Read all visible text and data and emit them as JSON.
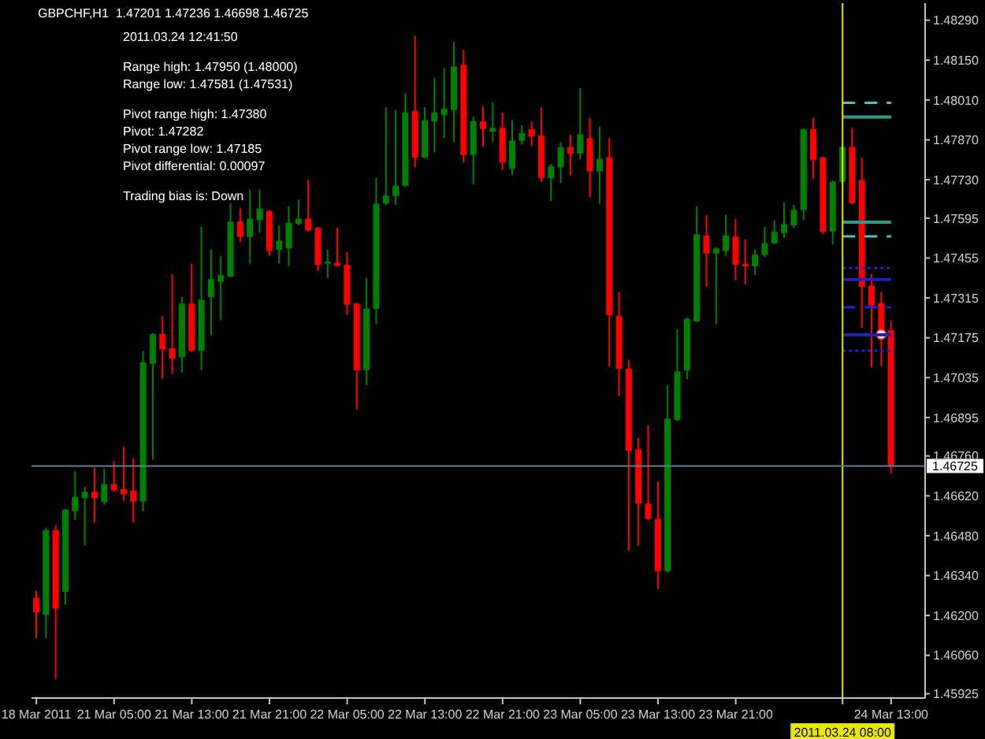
{
  "chart_data": {
    "type": "candlestick",
    "title": "GBPCHF,H1  1.47201 1.47236 1.46698 1.46725",
    "annotations": [
      "2011.03.24 12:41:50",
      "Range high: 1.47950 (1.48000)",
      "Range low: 1.47581 (1.47531)",
      "Pivot range high: 1.47380",
      "Pivot: 1.47282",
      "Pivot range low: 1.47185",
      "Pivot differential: 0.00097",
      "Trading bias is: Down"
    ],
    "categories": [
      "18 Mar 2011",
      null,
      null,
      null,
      null,
      null,
      null,
      null,
      "21 Mar 05:00",
      null,
      null,
      null,
      null,
      null,
      null,
      null,
      "21 Mar 13:00",
      null,
      null,
      null,
      null,
      null,
      null,
      null,
      "21 Mar 21:00",
      null,
      null,
      null,
      null,
      null,
      null,
      null,
      "22 Mar 05:00",
      null,
      null,
      null,
      null,
      null,
      null,
      null,
      "22 Mar 13:00",
      null,
      null,
      null,
      null,
      null,
      null,
      null,
      "22 Mar 21:00",
      null,
      null,
      null,
      null,
      null,
      null,
      null,
      "23 Mar 05:00",
      null,
      null,
      null,
      null,
      null,
      null,
      null,
      "23 Mar 13:00",
      null,
      null,
      null,
      null,
      null,
      null,
      null,
      "23 Mar 21:00",
      null,
      null,
      null,
      null,
      null,
      null,
      null,
      null,
      null,
      null,
      "2011.03.24 08:00",
      null,
      null,
      null,
      null,
      "24 Mar 13:00"
    ],
    "ohlc": [
      [
        1.46261,
        1.46287,
        1.46121,
        1.46211
      ],
      [
        1.46202,
        1.46508,
        1.46121,
        1.46499
      ],
      [
        1.46499,
        1.46517,
        1.45977,
        1.46224
      ],
      [
        1.46283,
        1.46575,
        1.46238,
        1.46571
      ],
      [
        1.46566,
        1.46706,
        1.46535,
        1.46616
      ],
      [
        1.46612,
        1.46652,
        1.46445,
        1.46634
      ],
      [
        1.46634,
        1.46719,
        1.46526,
        1.46612
      ],
      [
        1.46598,
        1.46715,
        1.46589,
        1.46661
      ],
      [
        1.46661,
        1.46742,
        1.46634,
        1.46639
      ],
      [
        1.46643,
        1.46792,
        1.46603,
        1.46625
      ],
      [
        1.46638,
        1.46751,
        1.46526,
        1.466
      ],
      [
        1.466,
        1.47129,
        1.46566,
        1.47089
      ],
      [
        1.47084,
        1.47192,
        1.46747,
        1.47188
      ],
      [
        1.47188,
        1.47251,
        1.4703,
        1.47134
      ],
      [
        1.47138,
        1.47399,
        1.47048,
        1.47102
      ],
      [
        1.47107,
        1.47318,
        1.47053,
        1.47295
      ],
      [
        1.47295,
        1.47435,
        1.47125,
        1.47129
      ],
      [
        1.47129,
        1.47565,
        1.47061,
        1.47309
      ],
      [
        1.47318,
        1.47485,
        1.47183,
        1.47381
      ],
      [
        1.47372,
        1.47462,
        1.47237,
        1.47395
      ],
      [
        1.4739,
        1.47647,
        1.47386,
        1.47583
      ],
      [
        1.47583,
        1.47629,
        1.47511,
        1.47529
      ],
      [
        1.47529,
        1.47696,
        1.47435,
        1.47593
      ],
      [
        1.47588,
        1.47696,
        1.47543,
        1.47629
      ],
      [
        1.4762,
        1.47624,
        1.47462,
        1.4748
      ],
      [
        1.47484,
        1.4757,
        1.47435,
        1.47516
      ],
      [
        1.47489,
        1.47637,
        1.47426,
        1.47579
      ],
      [
        1.47575,
        1.4766,
        1.4757,
        1.47593
      ],
      [
        1.47593,
        1.4773,
        1.47548,
        1.47552
      ],
      [
        1.47561,
        1.47565,
        1.47408,
        1.47431
      ],
      [
        1.47435,
        1.47485,
        1.47385,
        1.47442
      ],
      [
        1.47439,
        1.47561,
        1.47424,
        1.47428
      ],
      [
        1.47431,
        1.47476,
        1.47255,
        1.47291
      ],
      [
        1.47295,
        1.47298,
        1.46922,
        1.47061
      ],
      [
        1.47061,
        1.47385,
        1.47008,
        1.47277
      ],
      [
        1.47277,
        1.47736,
        1.47224,
        1.47646
      ],
      [
        1.47646,
        1.47984,
        1.47642,
        1.47674
      ],
      [
        1.47673,
        1.47975,
        1.47642,
        1.47709
      ],
      [
        1.47709,
        1.48034,
        1.47705,
        1.47966
      ],
      [
        1.47971,
        1.48236,
        1.47773,
        1.47808
      ],
      [
        1.47808,
        1.47984,
        1.47804,
        1.47939
      ],
      [
        1.47935,
        1.48088,
        1.47826,
        1.47966
      ],
      [
        1.47957,
        1.48123,
        1.47876,
        1.47979
      ],
      [
        1.47975,
        1.48214,
        1.47862,
        1.48128
      ],
      [
        1.48133,
        1.48186,
        1.4779,
        1.47817
      ],
      [
        1.47817,
        1.47952,
        1.47714,
        1.47935
      ],
      [
        1.47935,
        1.47988,
        1.47845,
        1.47908
      ],
      [
        1.47899,
        1.48002,
        1.47863,
        1.47912
      ],
      [
        1.47912,
        1.47966,
        1.47764,
        1.4779
      ],
      [
        1.47768,
        1.47939,
        1.47746,
        1.47867
      ],
      [
        1.47867,
        1.47921,
        1.47854,
        1.47894
      ],
      [
        1.47907,
        1.47934,
        1.47849,
        1.47881
      ],
      [
        1.47885,
        1.47984,
        1.47723,
        1.47736
      ],
      [
        1.47736,
        1.47786,
        1.47655,
        1.47777
      ],
      [
        1.47773,
        1.47862,
        1.47718,
        1.47844
      ],
      [
        1.47844,
        1.47889,
        1.47746,
        1.47822
      ],
      [
        1.47822,
        1.48052,
        1.478,
        1.47889
      ],
      [
        1.47876,
        1.47948,
        1.47669,
        1.47759
      ],
      [
        1.47759,
        1.47916,
        1.47646,
        1.47804
      ],
      [
        1.47809,
        1.47876,
        1.47075,
        1.47255
      ],
      [
        1.47251,
        1.47336,
        1.46971,
        1.47066
      ],
      [
        1.47066,
        1.47097,
        1.46427,
        1.46778
      ],
      [
        1.46783,
        1.46823,
        1.46445,
        1.46593
      ],
      [
        1.46593,
        1.46868,
        1.46535,
        1.46539
      ],
      [
        1.46539,
        1.4667,
        1.46292,
        1.46355
      ],
      [
        1.46355,
        1.47008,
        1.46351,
        1.46891
      ],
      [
        1.46886,
        1.47205,
        1.46882,
        1.47057
      ],
      [
        1.47061,
        1.47246,
        1.4703,
        1.47242
      ],
      [
        1.47233,
        1.47637,
        1.47229,
        1.47538
      ],
      [
        1.47534,
        1.47606,
        1.47354,
        1.47471
      ],
      [
        1.47471,
        1.47493,
        1.47223,
        1.47489
      ],
      [
        1.4748,
        1.47606,
        1.47462,
        1.47534
      ],
      [
        1.4753,
        1.47592,
        1.47377,
        1.47431
      ],
      [
        1.47435,
        1.47521,
        1.47363,
        1.47426
      ],
      [
        1.47426,
        1.47485,
        1.47395,
        1.47467
      ],
      [
        1.47466,
        1.47565,
        1.47457,
        1.47507
      ],
      [
        1.47507,
        1.47588,
        1.47503,
        1.47547
      ],
      [
        1.47543,
        1.47651,
        1.47525,
        1.47574
      ],
      [
        1.4757,
        1.47642,
        1.47561,
        1.47624
      ],
      [
        1.47624,
        1.4791,
        1.47588,
        1.47907
      ],
      [
        1.47907,
        1.47948,
        1.47732,
        1.47799
      ],
      [
        1.47808,
        1.47811,
        1.47538,
        1.47547
      ],
      [
        1.47548,
        1.47727,
        1.47502,
        1.47723
      ],
      [
        1.47723,
        1.47849,
        1.47719,
        1.47845
      ],
      [
        1.47845,
        1.47912,
        1.47644,
        1.47647
      ],
      [
        1.47728,
        1.47808,
        1.4721,
        1.47354
      ],
      [
        1.47358,
        1.47399,
        1.47071,
        1.47287
      ],
      [
        1.47296,
        1.47336,
        1.47075,
        1.47187
      ],
      [
        1.47201,
        1.47236,
        1.46698,
        1.46725
      ]
    ],
    "colors": [
      "#ff0000",
      "#008000",
      "#ff0000",
      "#008000",
      "#008000",
      "#008000",
      "#ff0000",
      "#008000",
      "#ff0000",
      "#ff0000",
      "#ff0000",
      "#008000",
      "#008000",
      "#ff0000",
      "#ff0000",
      "#008000",
      "#ff0000",
      "#008000",
      "#008000",
      "#008000",
      "#008000",
      "#ff0000",
      "#008000",
      "#008000",
      "#ff0000",
      "#008000",
      "#008000",
      "#008000",
      "#ff0000",
      "#ff0000",
      "#008000",
      "#ff0000",
      "#ff0000",
      "#ff0000",
      "#008000",
      "#008000",
      "#008000",
      "#008000",
      "#008000",
      "#ff0000",
      "#008000",
      "#008000",
      "#008000",
      "#008000",
      "#ff0000",
      "#008000",
      "#ff0000",
      "#008000",
      "#ff0000",
      "#008000",
      "#008000",
      "#ff0000",
      "#ff0000",
      "#008000",
      "#008000",
      "#ff0000",
      "#008000",
      "#ff0000",
      "#008000",
      "#ff0000",
      "#ff0000",
      "#ff0000",
      "#ff0000",
      "#ff0000",
      "#ff0000",
      "#008000",
      "#008000",
      "#008000",
      "#008000",
      "#ff0000",
      "#008000",
      "#008000",
      "#ff0000",
      "#ff0000",
      "#008000",
      "#008000",
      "#008000",
      "#008000",
      "#008000",
      "#008000",
      "#ff0000",
      "#ff0000",
      "#008000",
      "#008000",
      "#ff0000",
      "#ff0000",
      "#ff0000",
      "#ff0000",
      "#ff0000"
    ],
    "ylim": [
      1.4591,
      1.4835
    ],
    "yticks": [
      {
        "value": 1.4829,
        "label": "1.48290"
      },
      {
        "value": 1.4815,
        "label": "1.48150"
      },
      {
        "value": 1.4801,
        "label": "1.48010"
      },
      {
        "value": 1.4787,
        "label": "1.47870"
      },
      {
        "value": 1.4773,
        "label": "1.47730"
      },
      1.47595,
      1.47455,
      1.47315,
      1.47175,
      1.47035,
      1.46895,
      {
        "value": 1.4676,
        "label": "1.46760"
      },
      {
        "value": 1.4662,
        "label": "1.46620"
      },
      {
        "value": 1.4648,
        "label": "1.46480"
      },
      {
        "value": 1.4634,
        "label": "1.46340"
      },
      {
        "value": 1.462,
        "label": "1.46200"
      },
      {
        "value": 1.4606,
        "label": "1.46060"
      },
      1.45925
    ],
    "ref_lines": [
      {
        "axis": "x",
        "value": "2011.03.24 08:00",
        "color": "#e8e800"
      },
      {
        "axis": "y",
        "value": 1.46725,
        "label": "1.46725",
        "color": "#6b7c8d"
      }
    ],
    "series": [
      {
        "type": "line",
        "x": [
          "2011.03.24 08:00",
          "24 Mar 13:00"
        ],
        "values": [
          1.48,
          1.48
        ],
        "color": "#40c8c0",
        "line_style": "dashed"
      },
      {
        "type": "line",
        "x": [
          "2011.03.24 08:00",
          "24 Mar 13:00"
        ],
        "values": [
          1.4795,
          1.4795
        ],
        "color": "#2e9a8c",
        "line_style": "solid"
      },
      {
        "type": "line",
        "x": [
          "2011.03.24 08:00",
          "24 Mar 13:00"
        ],
        "values": [
          1.47581,
          1.47581
        ],
        "color": "#2e9a8c",
        "line_style": "solid"
      },
      {
        "type": "line",
        "x": [
          "2011.03.24 08:00",
          "24 Mar 13:00"
        ],
        "values": [
          1.47531,
          1.47531
        ],
        "color": "#40c8c0",
        "line_style": "dashed"
      },
      {
        "type": "line",
        "x": [
          "2011.03.24 08:00",
          "24 Mar 13:00"
        ],
        "values": [
          1.4742,
          1.4742
        ],
        "color": "#2020e0",
        "line_style": "dotted"
      },
      {
        "type": "line",
        "x": [
          "2011.03.24 08:00",
          "24 Mar 13:00"
        ],
        "values": [
          1.4738,
          1.4738
        ],
        "color": "#2020c0",
        "line_style": "solid"
      },
      {
        "type": "line",
        "x": [
          "2011.03.24 08:00",
          "24 Mar 13:00"
        ],
        "values": [
          1.47282,
          1.47282
        ],
        "color": "#2020e0",
        "line_style": "dashed"
      },
      {
        "type": "line",
        "x": [
          "2011.03.24 08:00",
          "24 Mar 13:00"
        ],
        "values": [
          1.47185,
          1.47185
        ],
        "color": "#2020c0",
        "line_style": "solid"
      },
      {
        "type": "line",
        "x": [
          "2011.03.24 08:00",
          "24 Mar 13:00"
        ],
        "values": [
          1.47129,
          1.47129
        ],
        "color": "#2020e0",
        "line_style": "dotted"
      }
    ]
  }
}
